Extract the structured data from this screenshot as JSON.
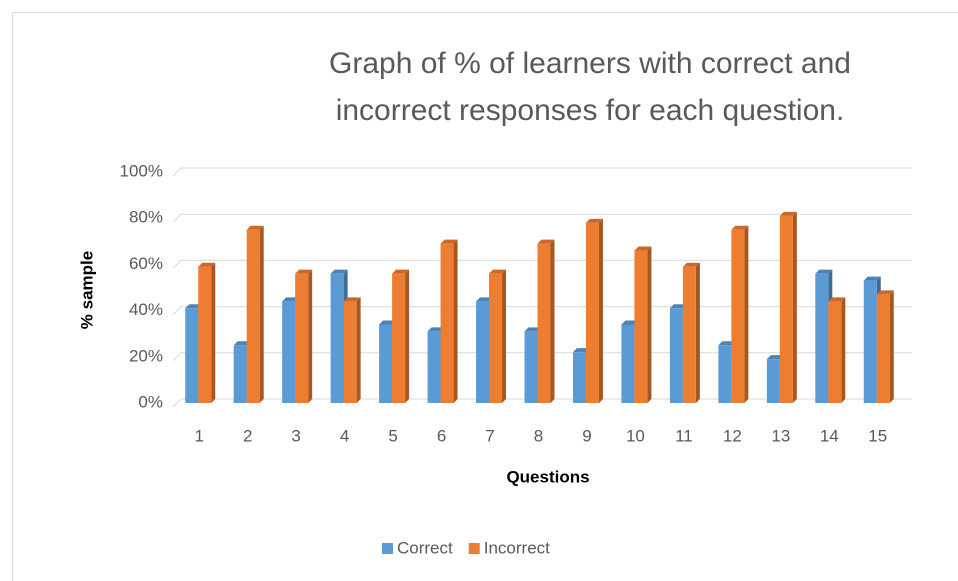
{
  "chart_data": {
    "type": "bar3d",
    "title": "Graph of % of learners with correct and incorrect responses for each question.",
    "xlabel": "Questions",
    "ylabel": "% sample",
    "categories": [
      "1",
      "2",
      "3",
      "4",
      "5",
      "6",
      "7",
      "8",
      "9",
      "10",
      "11",
      "12",
      "13",
      "14",
      "15"
    ],
    "series": [
      {
        "name": "Correct",
        "color": "#5b9bd5",
        "values": [
          41,
          25,
          44,
          56,
          34,
          31,
          44,
          31,
          22,
          34,
          41,
          25,
          19,
          56,
          53
        ]
      },
      {
        "name": "Incorrect",
        "color": "#ed7d31",
        "values": [
          59,
          75,
          56,
          44,
          56,
          69,
          56,
          69,
          78,
          66,
          59,
          75,
          81,
          44,
          47
        ]
      }
    ],
    "ylim": [
      0,
      100
    ],
    "yticks": [
      {
        "value": 0,
        "label": "0%"
      },
      {
        "value": 20,
        "label": "20%"
      },
      {
        "value": 40,
        "label": "40%"
      },
      {
        "value": 60,
        "label": "60%"
      },
      {
        "value": 80,
        "label": "80%"
      },
      {
        "value": 100,
        "label": "100%"
      }
    ],
    "grid": true,
    "legend": "bottom"
  }
}
